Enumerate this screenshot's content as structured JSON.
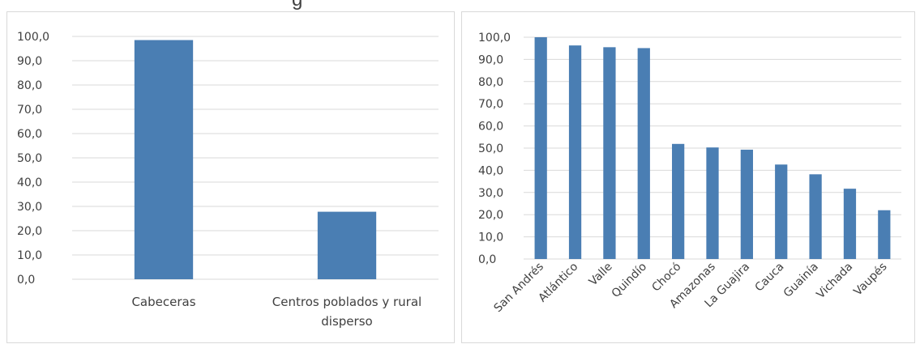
{
  "chart_data": [
    {
      "type": "bar",
      "categories": [
        "Cabeceras",
        "Centros poblados y rural disperso"
      ],
      "category_lines": [
        [
          "Cabeceras"
        ],
        [
          "Centros poblados y rural",
          "disperso"
        ]
      ],
      "values": [
        98.5,
        27.8
      ],
      "ylim": [
        0,
        100
      ],
      "yticks": [
        "0,0",
        "10,0",
        "20,0",
        "30,0",
        "40,0",
        "50,0",
        "60,0",
        "70,0",
        "80,0",
        "90,0",
        "100,0"
      ],
      "grid": true,
      "color": "#4a7eb3"
    },
    {
      "type": "bar",
      "categories": [
        "San Andrés",
        "Atlántico",
        "Valle",
        "Quindío",
        "Chocó",
        "Amazonas",
        "La Guajira",
        "Cauca",
        "Guainía",
        "Vichada",
        "Vaupés"
      ],
      "values": [
        100.0,
        96.3,
        95.5,
        95.1,
        51.9,
        50.3,
        49.3,
        42.6,
        38.2,
        31.7,
        22.0
      ],
      "ylim": [
        0,
        100
      ],
      "yticks": [
        "0,0",
        "10,0",
        "20,0",
        "30,0",
        "40,0",
        "50,0",
        "60,0",
        "70,0",
        "80,0",
        "90,0",
        "100,0"
      ],
      "grid": true,
      "color": "#4a7eb3"
    }
  ]
}
